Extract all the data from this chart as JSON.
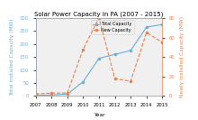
{
  "title": "Solar Power Capacity in PA (2007 - 2015)",
  "years": [
    2007,
    2008,
    2009,
    2010,
    2011,
    2012,
    2013,
    2014,
    2015
  ],
  "total_capacity": [
    2,
    4,
    7,
    55,
    145,
    160,
    175,
    265,
    275
  ],
  "new_capacity": [
    2,
    3,
    3,
    48,
    80,
    18,
    15,
    65,
    55
  ],
  "left_ylim": [
    0,
    300
  ],
  "right_ylim": [
    0,
    80
  ],
  "left_yticks": [
    0,
    50,
    100,
    150,
    200,
    250,
    300
  ],
  "right_yticks": [
    0,
    20,
    40,
    60,
    80
  ],
  "xlabel": "Year",
  "left_ylabel": "Total Installed Capacity (MW)",
  "right_ylabel": "Newly Installed Capacity (MW)",
  "total_color": "#6ab0d8",
  "new_color": "#e8834a",
  "legend_total": "Total Capacity",
  "legend_new": "New Capacity",
  "title_fontsize": 5.0,
  "label_fontsize": 4.2,
  "tick_fontsize": 3.8,
  "legend_fontsize": 3.5,
  "bg_color": "#f0f0f0",
  "fig_bg": "#ffffff"
}
